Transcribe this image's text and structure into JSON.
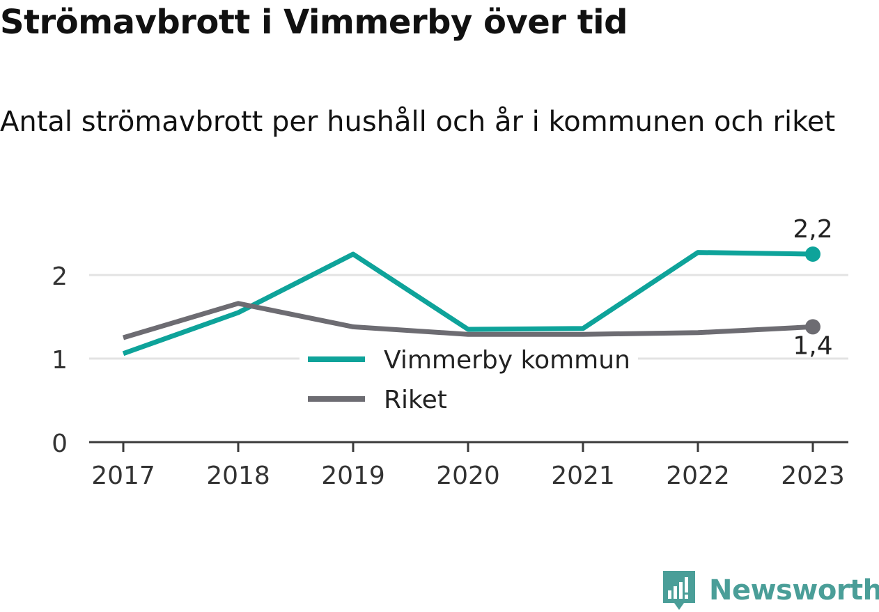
{
  "chart_data": {
    "type": "line",
    "title": "Strömavbrott i Vimmerby över tid",
    "subtitle": "Antal strömavbrott per hushåll och år i kommunen och riket",
    "x": [
      "2017",
      "2018",
      "2019",
      "2020",
      "2021",
      "2022",
      "2023"
    ],
    "y_ticks": [
      "0",
      "1",
      "2"
    ],
    "ylim": [
      0,
      2.5
    ],
    "grid": true,
    "legend_position": "center",
    "series": [
      {
        "name": "Vimmerby kommun",
        "color": "#0ea39a",
        "values": [
          1.06,
          1.55,
          2.25,
          1.35,
          1.36,
          2.27,
          2.25
        ],
        "end_label": "2,2"
      },
      {
        "name": "Riket",
        "color": "#6d6c72",
        "values": [
          1.25,
          1.66,
          1.38,
          1.29,
          1.29,
          1.31,
          1.38
        ],
        "end_label": "1,4"
      }
    ]
  },
  "branding": {
    "name": "Newsworthy",
    "color": "#4a9e98",
    "icon": "bar-chart-speech-bubble-icon"
  }
}
